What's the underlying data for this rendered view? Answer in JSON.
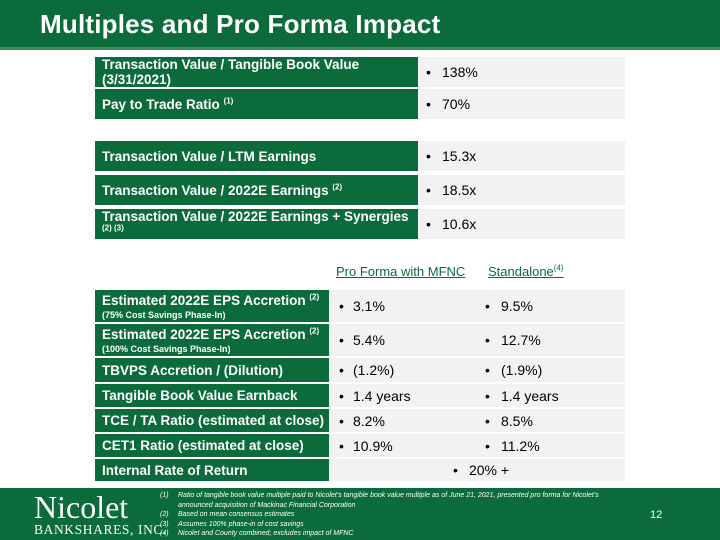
{
  "title": "Multiples and Pro Forma Impact",
  "summary_rows": [
    {
      "label": "Transaction Value / Tangible Book Value (3/31/2021)",
      "note": "",
      "value": "138%"
    },
    {
      "label": "Pay to Trade Ratio",
      "note": "(1)",
      "value": "70%"
    },
    {
      "label": "Transaction Value / LTM Earnings",
      "note": "",
      "value": "15.3x"
    },
    {
      "label": "Transaction Value / 2022E Earnings",
      "note": "(2)",
      "value": "18.5x"
    },
    {
      "label": "Transaction Value / 2022E Earnings + Synergies",
      "note": "(2) (3)",
      "value": "10.6x"
    }
  ],
  "bullet": "•",
  "columns": {
    "pro_forma": "Pro Forma with MFNC",
    "standalone": "Standalone",
    "standalone_note": "(4)"
  },
  "impact_rows": [
    {
      "label": "Estimated 2022E EPS Accretion",
      "note": "(2)",
      "sub": "(75% Cost Savings Phase-In)",
      "pro_forma": "3.1%",
      "standalone": "9.5%"
    },
    {
      "label": "Estimated 2022E EPS Accretion",
      "note": "(2)",
      "sub": "(100% Cost Savings Phase-In)",
      "pro_forma": "5.4%",
      "standalone": "12.7%"
    },
    {
      "label": "TBVPS Accretion / (Dilution)",
      "note": "",
      "sub": "",
      "pro_forma": "(1.2%)",
      "standalone": "(1.9%)"
    },
    {
      "label": "Tangible Book Value Earnback",
      "note": "",
      "sub": "",
      "pro_forma": "1.4 years",
      "standalone": "1.4 years"
    },
    {
      "label": "TCE / TA Ratio (estimated at close)",
      "note": "",
      "sub": "",
      "pro_forma": "8.2%",
      "standalone": "8.5%"
    },
    {
      "label": "CET1 Ratio (estimated at close)",
      "note": "",
      "sub": "",
      "pro_forma": "10.9%",
      "standalone": "11.2%"
    }
  ],
  "irr_row": {
    "label": "Internal Rate of Return",
    "value": "20% +"
  },
  "logo": {
    "name": "Nicolet",
    "tagline": "BANKSHARES, INC."
  },
  "footnotes": [
    {
      "num": "(1)",
      "text": "Ratio of tangible book value multiple paid to Nicolet’s tangible book value multiple as of June 21, 2021, presented pro forma for Nicolet’s announced acquisition of Mackinac Financial Corporation"
    },
    {
      "num": "(2)",
      "text": "Based on mean consensus estimates"
    },
    {
      "num": "(3)",
      "text": "Assumes 100% phase-in of cost savings"
    },
    {
      "num": "(4)",
      "text": "Nicolet and County combined; excludes impact of MFNC"
    }
  ],
  "page_number": "12",
  "colors": {
    "brand_green": "#0b6b3a",
    "value_bg": "#f2f2f2"
  }
}
